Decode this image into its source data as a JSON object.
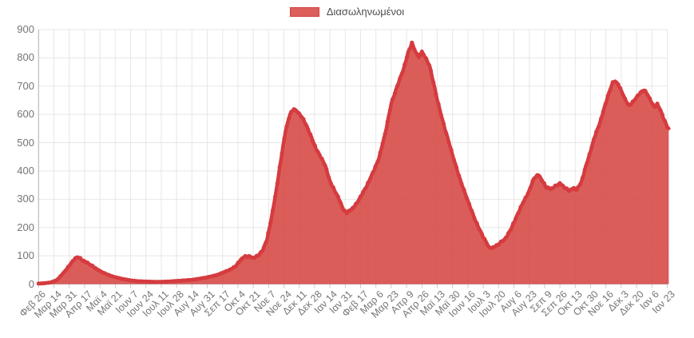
{
  "legend": {
    "label": "Διασωληνωμένοι",
    "swatch_fill": "#dc5f5c",
    "swatch_border": "#d43f3a"
  },
  "colors": {
    "line": "#d53b3f",
    "area_fill": "#d64542",
    "area_opacity": 0.87,
    "grid": "#e7e7e7",
    "axis": "#b4b4b4",
    "tick_mark": "#c8c8c8",
    "axis_text": "#757575",
    "legend_text": "#4d4d4d"
  },
  "chart_data": {
    "type": "area",
    "title": "",
    "xlabel": "",
    "ylabel": "",
    "legend_position": "top-center",
    "grid": true,
    "ylim": [
      0,
      900
    ],
    "y_ticks": [
      0,
      100,
      200,
      300,
      400,
      500,
      600,
      700,
      800,
      900
    ],
    "x_tick_labels": [
      "Φεβ 26",
      "Μαρ 14",
      "Μαρ 31",
      "Απρ 17",
      "Μαϊ 4",
      "Μαϊ 21",
      "Ιουν 7",
      "Ιουν 24",
      "Ιουλ 11",
      "Ιουλ 28",
      "Αυγ 14",
      "Αυγ 31",
      "Σεπ 17",
      "Οκτ 4",
      "Οκτ 21",
      "Νοε 7",
      "Νοε 24",
      "Δεκ 11",
      "Δεκ 28",
      "Ιαν 14",
      "Ιαν 31",
      "Φεβ 17",
      "Μαρ 6",
      "Μαρ 23",
      "Απρ 9",
      "Απρ 26",
      "Μαϊ 13",
      "Μαϊ 30",
      "Ιουν 16",
      "Ιουλ 3",
      "Ιουλ 20",
      "Αυγ 6",
      "Αυγ 23",
      "Σεπ 9",
      "Σεπ 26",
      "Οκτ 13",
      "Οκτ 30",
      "Νοε 16",
      "Δεκ 3",
      "Δεκ 20",
      "Ιαν 6",
      "Ιαν 23"
    ],
    "x_unit": "tick_index (0 = first tick label, 17 days between ticks)",
    "series": [
      {
        "name": "Διασωληνωμένοι",
        "points": [
          [
            0,
            2
          ],
          [
            0.4,
            3
          ],
          [
            0.8,
            6
          ],
          [
            1.2,
            14
          ],
          [
            1.6,
            38
          ],
          [
            2.0,
            66
          ],
          [
            2.3,
            85
          ],
          [
            2.55,
            95
          ],
          [
            2.8,
            88
          ],
          [
            3.1,
            78
          ],
          [
            3.5,
            63
          ],
          [
            3.9,
            50
          ],
          [
            4.3,
            38
          ],
          [
            4.7,
            29
          ],
          [
            5.1,
            23
          ],
          [
            5.5,
            18
          ],
          [
            6,
            13
          ],
          [
            6.5,
            10
          ],
          [
            7,
            9
          ],
          [
            7.5,
            8
          ],
          [
            8,
            8
          ],
          [
            8.5,
            9
          ],
          [
            9,
            11
          ],
          [
            9.5,
            13
          ],
          [
            10,
            15
          ],
          [
            10.5,
            19
          ],
          [
            11,
            24
          ],
          [
            11.5,
            30
          ],
          [
            12,
            40
          ],
          [
            12.4,
            48
          ],
          [
            12.8,
            62
          ],
          [
            13.1,
            80
          ],
          [
            13.4,
            95
          ],
          [
            13.7,
            100
          ],
          [
            14,
            93
          ],
          [
            14.3,
            98
          ],
          [
            14.6,
            118
          ],
          [
            14.9,
            160
          ],
          [
            15.2,
            235
          ],
          [
            15.5,
            330
          ],
          [
            15.8,
            440
          ],
          [
            16.1,
            540
          ],
          [
            16.4,
            600
          ],
          [
            16.65,
            620
          ],
          [
            16.9,
            610
          ],
          [
            17.2,
            588
          ],
          [
            17.5,
            556
          ],
          [
            17.8,
            520
          ],
          [
            18.1,
            478
          ],
          [
            18.4,
            448
          ],
          [
            18.7,
            420
          ],
          [
            19,
            365
          ],
          [
            19.3,
            330
          ],
          [
            19.6,
            300
          ],
          [
            19.9,
            262
          ],
          [
            20.1,
            253
          ],
          [
            20.4,
            262
          ],
          [
            20.7,
            283
          ],
          [
            21,
            310
          ],
          [
            21.4,
            345
          ],
          [
            21.8,
            395
          ],
          [
            22.2,
            445
          ],
          [
            22.6,
            530
          ],
          [
            23,
            640
          ],
          [
            23.4,
            700
          ],
          [
            23.8,
            760
          ],
          [
            24.1,
            820
          ],
          [
            24.35,
            852
          ],
          [
            24.6,
            818
          ],
          [
            24.8,
            802
          ],
          [
            25,
            822
          ],
          [
            25.2,
            806
          ],
          [
            25.5,
            772
          ],
          [
            26,
            652
          ],
          [
            26.5,
            550
          ],
          [
            27,
            455
          ],
          [
            27.5,
            370
          ],
          [
            28,
            292
          ],
          [
            28.5,
            225
          ],
          [
            29,
            165
          ],
          [
            29.4,
            128
          ],
          [
            29.7,
            132
          ],
          [
            30,
            140
          ],
          [
            30.4,
            158
          ],
          [
            30.8,
            195
          ],
          [
            31.2,
            240
          ],
          [
            31.6,
            290
          ],
          [
            32,
            330
          ],
          [
            32.3,
            372
          ],
          [
            32.6,
            388
          ],
          [
            32.9,
            362
          ],
          [
            33.1,
            342
          ],
          [
            33.4,
            335
          ],
          [
            33.7,
            348
          ],
          [
            34,
            356
          ],
          [
            34.3,
            340
          ],
          [
            34.6,
            332
          ],
          [
            34.9,
            340
          ],
          [
            35.1,
            332
          ],
          [
            35.4,
            360
          ],
          [
            35.7,
            420
          ],
          [
            36,
            470
          ],
          [
            36.3,
            525
          ],
          [
            36.6,
            570
          ],
          [
            36.9,
            625
          ],
          [
            37.2,
            675
          ],
          [
            37.45,
            712
          ],
          [
            37.6,
            718
          ],
          [
            37.8,
            708
          ],
          [
            38,
            685
          ],
          [
            38.25,
            652
          ],
          [
            38.5,
            630
          ],
          [
            38.75,
            645
          ],
          [
            39,
            662
          ],
          [
            39.25,
            676
          ],
          [
            39.5,
            685
          ],
          [
            39.7,
            672
          ],
          [
            39.95,
            648
          ],
          [
            40.15,
            626
          ],
          [
            40.35,
            635
          ],
          [
            40.55,
            615
          ],
          [
            40.75,
            588
          ],
          [
            41,
            558
          ],
          [
            41.1,
            550
          ]
        ]
      }
    ]
  }
}
